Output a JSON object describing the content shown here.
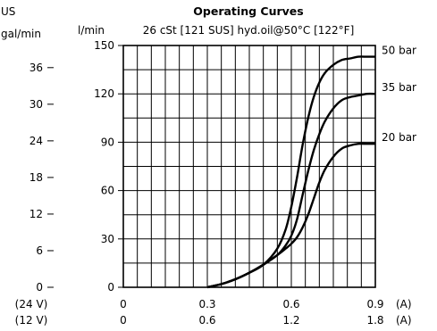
{
  "chart_data": {
    "type": "line",
    "title": "Operating Curves",
    "subtitle": "26 cSt [121 SUS] hyd.oil@50°C [122°F]",
    "y_left_unit_top": "US",
    "y_left_unit_bottom": "gal/min",
    "y_unit": "l/min",
    "x_label_A": "(A)",
    "x_label_24v": "(24 V)",
    "x_label_12v": "(12 V)",
    "x_ticks_24v": [
      "0",
      "0.3",
      "0.6",
      "0.9"
    ],
    "x_ticks_12v": [
      "0",
      "0.6",
      "1.2",
      "1.8"
    ],
    "y_ticks_lmin": [
      "0",
      "30",
      "60",
      "90",
      "120",
      "150"
    ],
    "y_ticks_gal": [
      "0",
      "6",
      "12",
      "18",
      "24",
      "30",
      "36"
    ],
    "y_ticks_gal_values": [
      0,
      6,
      12,
      18,
      24,
      30,
      36
    ],
    "xlim": [
      0,
      0.9
    ],
    "ylim": [
      0,
      150
    ],
    "grid": true,
    "series": [
      {
        "name": "50 bar",
        "x": [
          0.3,
          0.35,
          0.4,
          0.45,
          0.5,
          0.55,
          0.58,
          0.6,
          0.62,
          0.64,
          0.66,
          0.68,
          0.7,
          0.72,
          0.75,
          0.78,
          0.81,
          0.84,
          0.87,
          0.9
        ],
        "y": [
          0,
          2,
          5,
          9,
          14,
          24,
          36,
          50,
          68,
          88,
          105,
          118,
          127,
          133,
          138,
          141,
          142,
          143,
          143,
          143
        ]
      },
      {
        "name": "35 bar",
        "x": [
          0.3,
          0.35,
          0.4,
          0.45,
          0.5,
          0.55,
          0.58,
          0.6,
          0.62,
          0.64,
          0.66,
          0.68,
          0.7,
          0.72,
          0.75,
          0.78,
          0.81,
          0.84,
          0.87,
          0.9
        ],
        "y": [
          0,
          2,
          5,
          9,
          14,
          20,
          26,
          32,
          42,
          57,
          72,
          85,
          95,
          103,
          111,
          116,
          118,
          119,
          120,
          120
        ]
      },
      {
        "name": "20 bar",
        "x": [
          0.3,
          0.35,
          0.4,
          0.45,
          0.5,
          0.55,
          0.58,
          0.6,
          0.62,
          0.64,
          0.66,
          0.68,
          0.7,
          0.72,
          0.75,
          0.78,
          0.81,
          0.84,
          0.87,
          0.9
        ],
        "y": [
          0,
          2,
          5,
          9,
          14,
          20,
          24,
          27,
          31,
          37,
          45,
          55,
          65,
          73,
          81,
          86,
          88,
          89,
          89,
          89
        ]
      }
    ]
  }
}
